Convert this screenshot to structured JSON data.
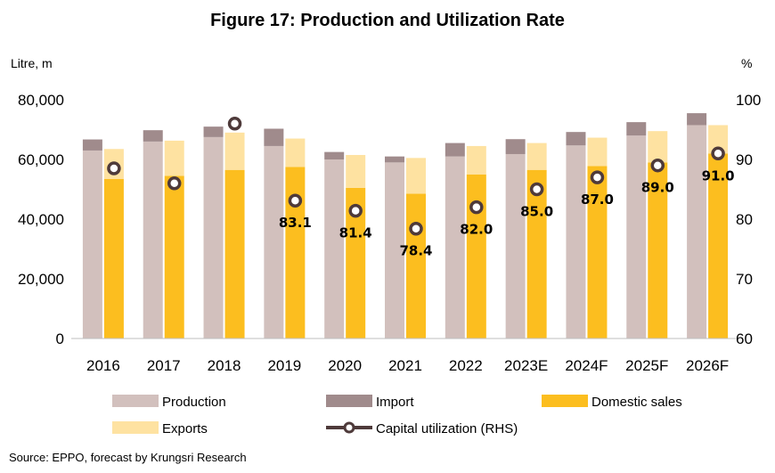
{
  "title": "Figure 17: Production and Utilization Rate",
  "source": "Source: EPPO, forecast by Krungsri Research",
  "colors": {
    "production": "#d2c0bd",
    "import": "#a08b8c",
    "domestic_sales": "#fcbe1f",
    "exports": "#fee2a1",
    "utilization_line": "#4e3a3a",
    "axis": "#000000"
  },
  "chart_data": {
    "type": "bar",
    "title": "Figure 17: Production and Utilization Rate",
    "ylabel_left": "Litre, m",
    "ylabel_right": "%",
    "ylim_left": [
      0,
      80000
    ],
    "ylim_right": [
      60,
      100
    ],
    "yticks_left": [
      "0",
      "20,000",
      "40,000",
      "60,000",
      "80,000"
    ],
    "yticks_right": [
      "60",
      "70",
      "80",
      "90",
      "100"
    ],
    "categories": [
      "2016",
      "2017",
      "2018",
      "2019",
      "2020",
      "2021",
      "2022",
      "2023E",
      "2024F",
      "2025F",
      "2026F"
    ],
    "supply_series": [
      {
        "name": "Production",
        "values": [
          63000,
          66000,
          67500,
          64500,
          60000,
          59000,
          61000,
          61800,
          64700,
          68000,
          71500
        ]
      },
      {
        "name": "Import",
        "values": [
          3700,
          3800,
          3500,
          5800,
          2500,
          2000,
          4500,
          5000,
          4500,
          4500,
          4000
        ]
      }
    ],
    "demand_series": [
      {
        "name": "Domestic sales",
        "values": [
          53500,
          54500,
          56500,
          57500,
          50500,
          48500,
          55000,
          56500,
          57800,
          59000,
          62000
        ]
      },
      {
        "name": "Exports",
        "values": [
          10000,
          11800,
          12500,
          9500,
          11000,
          12000,
          9500,
          9000,
          9500,
          10500,
          9500
        ]
      }
    ],
    "line_series": {
      "name": "Capital utilization (RHS)",
      "values": [
        88.5,
        86.0,
        96.0,
        83.1,
        81.4,
        78.4,
        82.0,
        85.0,
        87.0,
        89.0,
        91.0
      ],
      "labels": [
        "",
        "",
        "",
        "83.1",
        "81.4",
        "78.4",
        "82.0",
        "85.0",
        "87.0",
        "89.0",
        "91.0"
      ]
    },
    "legend": {
      "placement": "bottom",
      "items": [
        {
          "name": "Production",
          "key": "production"
        },
        {
          "name": "Import",
          "key": "import"
        },
        {
          "name": "Domestic sales",
          "key": "domestic_sales"
        },
        {
          "name": "Exports",
          "key": "exports"
        },
        {
          "name": "Capital utilization (RHS)",
          "key": "utilization_line"
        }
      ]
    },
    "grid": false
  }
}
